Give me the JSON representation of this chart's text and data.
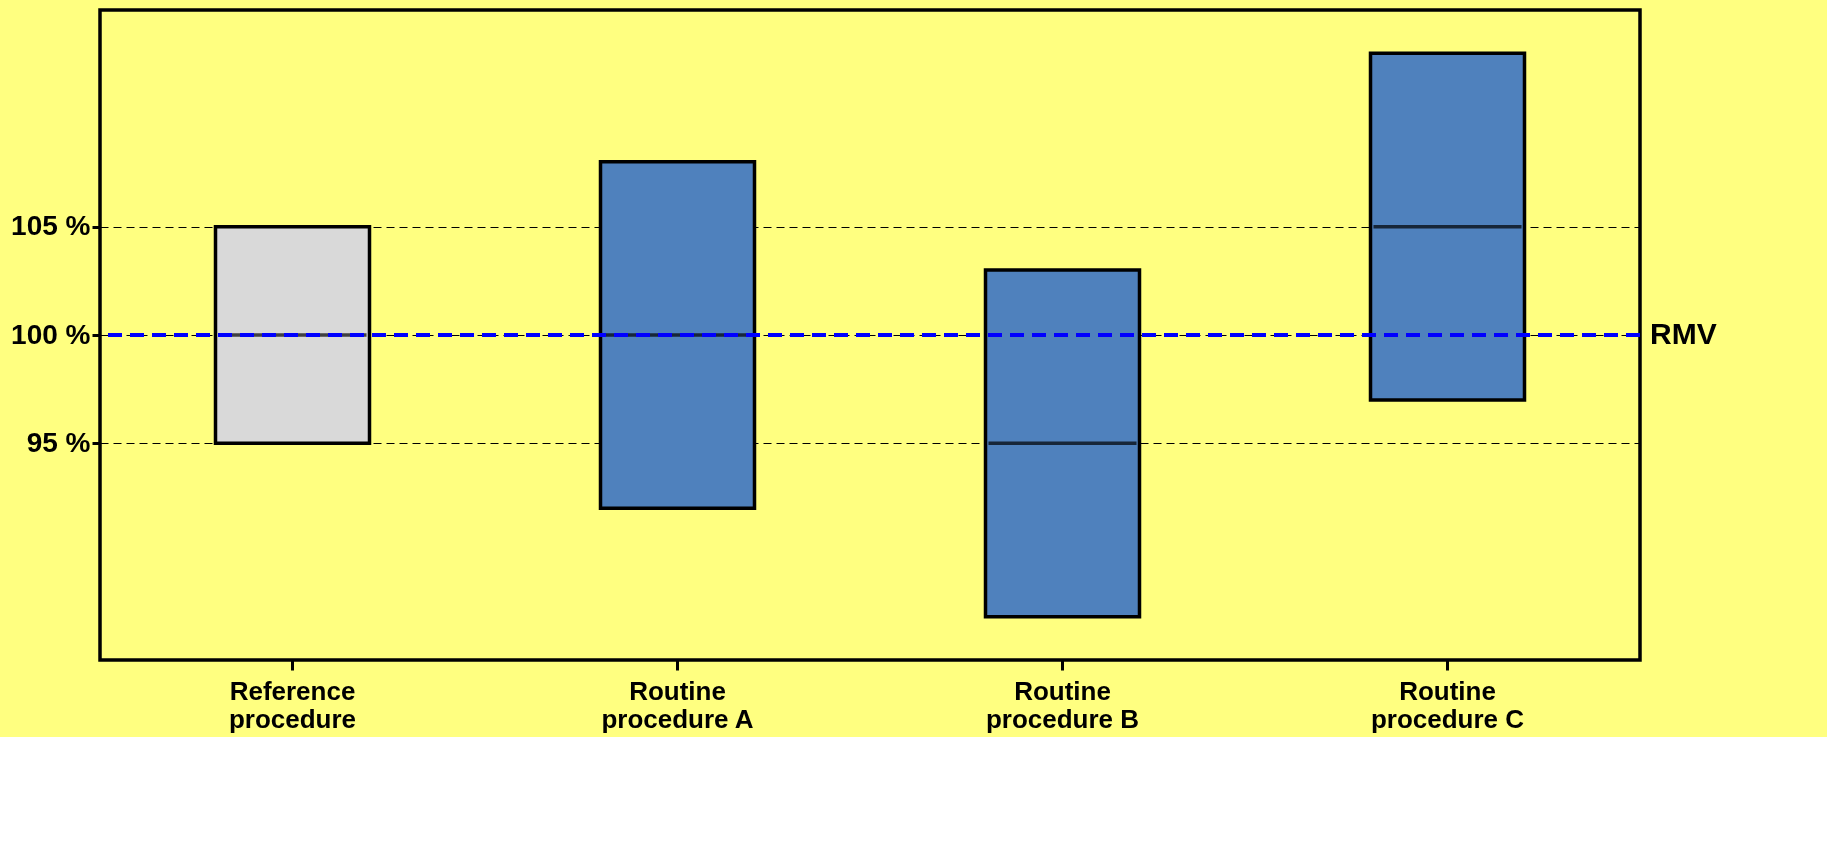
{
  "chart_data": {
    "type": "box",
    "categories": [
      "Reference procedure",
      "Routine procedure A",
      "Routine procedure B",
      "Routine procedure C"
    ],
    "boxes": [
      {
        "low": 95,
        "q1": 95,
        "median": 100,
        "q3": 105,
        "high": 105
      },
      {
        "low": 92,
        "q1": 92,
        "median": 100,
        "q3": 108,
        "high": 108
      },
      {
        "low": 87,
        "q1": 87,
        "median": 95,
        "q3": 103,
        "high": 103
      },
      {
        "low": 97,
        "q1": 97,
        "median": 105,
        "q3": 113,
        "high": 113
      }
    ],
    "colors": [
      "#d9d9d9",
      "#4f81bd",
      "#4f81bd",
      "#4f81bd"
    ],
    "ylim": [
      85,
      115
    ],
    "yticks": [
      {
        "value": 95,
        "label": "95 %"
      },
      {
        "value": 100,
        "label": "100 %"
      },
      {
        "value": 105,
        "label": "105 %"
      }
    ],
    "grid": "y",
    "ref_lines": [
      {
        "axis": "y",
        "value": 100,
        "label": "RMV",
        "color": "#0000ff",
        "line_style": "dashed"
      }
    ]
  }
}
